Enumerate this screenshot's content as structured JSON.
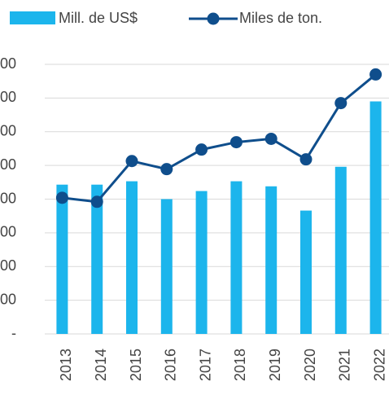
{
  "chart_data": {
    "type": "bar-line",
    "categories": [
      "2013",
      "2014",
      "2015",
      "2016",
      "2017",
      "2018",
      "2019",
      "2020",
      "2021",
      "2022"
    ],
    "series": [
      {
        "name": "Mill. de US$",
        "type": "bar",
        "color": "#1cb5ec",
        "values": [
          443,
          443,
          453,
          400,
          424,
          453,
          438,
          366,
          496,
          690
        ]
      },
      {
        "name": "Miles de ton.",
        "type": "line",
        "color": "#0f4e8c",
        "values": [
          404,
          392,
          513,
          489,
          547,
          569,
          579,
          518,
          685,
          770
        ]
      }
    ],
    "ylim": [
      0,
      800
    ],
    "yticks": [
      {
        "value": 0,
        "label": "-"
      },
      {
        "value": 100,
        "label": "00"
      },
      {
        "value": 200,
        "label": "00"
      },
      {
        "value": 300,
        "label": "00"
      },
      {
        "value": 400,
        "label": "00"
      },
      {
        "value": 500,
        "label": "00"
      },
      {
        "value": 600,
        "label": "00"
      },
      {
        "value": 700,
        "label": "00"
      },
      {
        "value": 800,
        "label": "00"
      }
    ],
    "grid": true,
    "legend": "top"
  }
}
